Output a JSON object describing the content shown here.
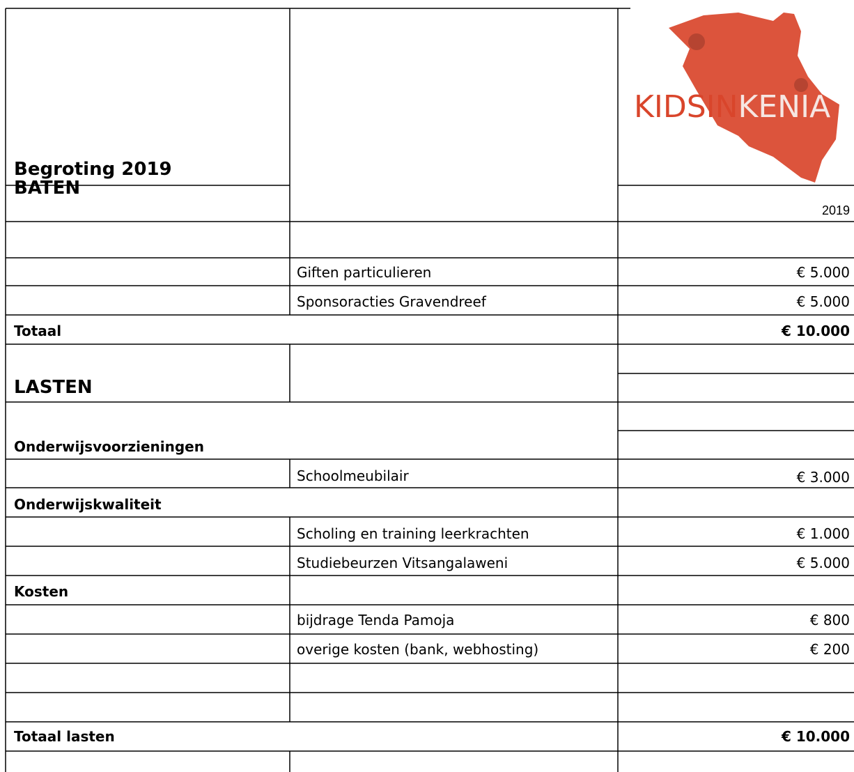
{
  "header": {
    "title": "Begroting 2019",
    "year": "2019",
    "logo": [
      "KIDSIN",
      "KENIA"
    ]
  },
  "baten": {
    "heading": "BATEN",
    "items": [
      {
        "label": "Giften particulieren",
        "amount": "€ 5.000"
      },
      {
        "label": "Sponsoracties Gravendreef",
        "amount": "€ 5.000"
      }
    ],
    "total_label": "Totaal",
    "total": "€ 10.000"
  },
  "lasten": {
    "heading": "LASTEN",
    "groups": [
      {
        "name": "Onderwijsvoorzieningen",
        "items": [
          {
            "label": "Schoolmeubilair",
            "amount": "€ 3.000"
          }
        ]
      },
      {
        "name": "Onderwijskwaliteit",
        "items": [
          {
            "label": "Scholing en training leerkrachten",
            "amount": "€ 1.000"
          },
          {
            "label": "Studiebeurzen Vitsangalaweni",
            "amount": "€ 5.000"
          }
        ]
      },
      {
        "name": "Kosten",
        "items": [
          {
            "label": "bijdrage Tenda Pamoja",
            "amount": "€ 800"
          },
          {
            "label": "overige kosten (bank, webhosting)",
            "amount": "€ 200"
          }
        ]
      }
    ],
    "total_label": "Totaal lasten",
    "total": "€ 10.000"
  }
}
